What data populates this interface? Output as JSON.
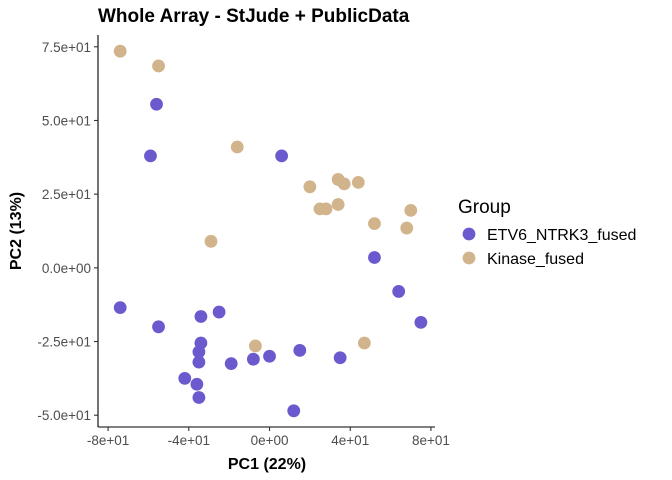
{
  "chart_data": {
    "type": "scatter",
    "title": "Whole Array - StJude + PublicData",
    "xlabel": "PC1 (22%)",
    "ylabel": "PC2 (13%)",
    "xlim": [
      -85,
      82
    ],
    "ylim": [
      -54,
      79
    ],
    "x_ticks": [
      -80,
      -40,
      0,
      40,
      80
    ],
    "x_tick_labels": [
      "-8e+01",
      "-4e+01",
      "0e+00",
      "4e+01",
      "8e+01"
    ],
    "y_ticks": [
      -50,
      -25,
      0,
      25,
      50,
      75
    ],
    "y_tick_labels": [
      "-5.0e+01",
      "-2.5e+01",
      "0.0e+00",
      "2.5e+01",
      "5.0e+01",
      "7.5e+01"
    ],
    "grid": false,
    "legend": {
      "title": "Group",
      "position": "right"
    },
    "series": [
      {
        "name": "ETV6_NTRK3_fused",
        "color": "#6a5acd",
        "points": [
          {
            "x": -56,
            "y": 55.5
          },
          {
            "x": -59,
            "y": 38
          },
          {
            "x": 6,
            "y": 38
          },
          {
            "x": 52,
            "y": 3.5
          },
          {
            "x": 64,
            "y": -8
          },
          {
            "x": 75,
            "y": -18.5
          },
          {
            "x": -74,
            "y": -13.5
          },
          {
            "x": -55,
            "y": -20
          },
          {
            "x": -34,
            "y": -16.5
          },
          {
            "x": -25,
            "y": -15
          },
          {
            "x": -34,
            "y": -25.5
          },
          {
            "x": -35,
            "y": -28.5
          },
          {
            "x": -35,
            "y": -32
          },
          {
            "x": -42,
            "y": -37.5
          },
          {
            "x": -36,
            "y": -39.5
          },
          {
            "x": -35,
            "y": -44
          },
          {
            "x": -19,
            "y": -32.5
          },
          {
            "x": -8,
            "y": -31
          },
          {
            "x": 0,
            "y": -30
          },
          {
            "x": 15,
            "y": -28
          },
          {
            "x": 35,
            "y": -30.5
          },
          {
            "x": 12,
            "y": -48.5
          }
        ]
      },
      {
        "name": "Kinase_fused",
        "color": "#d2b48c",
        "points": [
          {
            "x": -74,
            "y": 73.5
          },
          {
            "x": -55,
            "y": 68.5
          },
          {
            "x": -16,
            "y": 41
          },
          {
            "x": -29,
            "y": 9
          },
          {
            "x": 20,
            "y": 27.5
          },
          {
            "x": 34,
            "y": 30
          },
          {
            "x": 37,
            "y": 28.5
          },
          {
            "x": 44,
            "y": 29
          },
          {
            "x": 25,
            "y": 20
          },
          {
            "x": 28,
            "y": 20
          },
          {
            "x": 34,
            "y": 21.5
          },
          {
            "x": 52,
            "y": 15
          },
          {
            "x": 70,
            "y": 19.5
          },
          {
            "x": 68,
            "y": 13.5
          },
          {
            "x": -7,
            "y": -26.5
          },
          {
            "x": 47,
            "y": -25.5
          }
        ]
      }
    ]
  }
}
